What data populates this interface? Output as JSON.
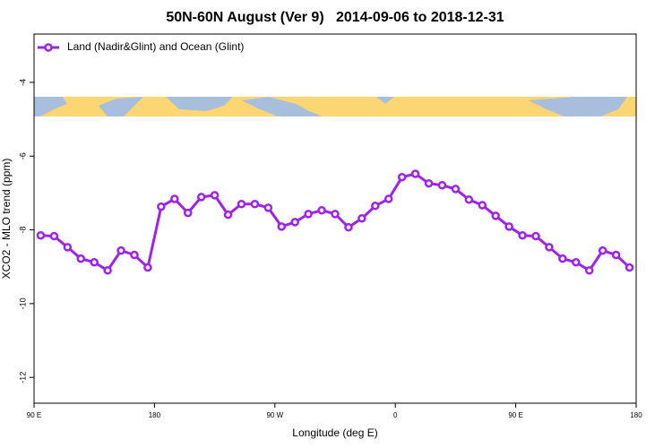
{
  "chart_data": {
    "type": "line",
    "title": "50N-60N August (Ver 9)   2014-09-06 to 2018-12-31",
    "xlabel": "Longitude (deg E)",
    "ylabel": "XCO2 - MLO trend (ppm)",
    "x": [
      95,
      105,
      115,
      125,
      135,
      145,
      155,
      165,
      175,
      185,
      195,
      205,
      215,
      225,
      235,
      245,
      255,
      265,
      275,
      285,
      295,
      305,
      315,
      325,
      335,
      345,
      355,
      365,
      375,
      385,
      395,
      405,
      415,
      425,
      435,
      445,
      455,
      465,
      475,
      485,
      495,
      505,
      515,
      525,
      535
    ],
    "series": [
      {
        "name": "Land (Nadir&Glint) and Ocean (Glint)",
        "color": "#a020f0",
        "values": [
          -8.15,
          -8.17,
          -8.47,
          -8.78,
          -8.88,
          -9.1,
          -8.56,
          -8.68,
          -9.02,
          -7.37,
          -7.16,
          -7.54,
          -7.11,
          -7.06,
          -7.59,
          -7.3,
          -7.3,
          -7.4,
          -7.91,
          -7.79,
          -7.57,
          -7.47,
          -7.57,
          -7.93,
          -7.69,
          -7.35,
          -7.16,
          -6.57,
          -6.48,
          -6.74,
          -6.79,
          -6.89,
          -7.18,
          -7.33,
          -7.62,
          -7.91,
          -8.15,
          -8.17,
          -8.47,
          -8.78,
          -8.88,
          -9.1,
          -8.56,
          -8.68,
          -9.02
        ]
      }
    ],
    "xlim": [
      90,
      540
    ],
    "xticks": [
      {
        "value": 90,
        "label": "90 E"
      },
      {
        "value": 180,
        "label": "180"
      },
      {
        "value": 270,
        "label": "90 W"
      },
      {
        "value": 360,
        "label": "0"
      },
      {
        "value": 450,
        "label": "90 E"
      },
      {
        "value": 540,
        "label": "180"
      }
    ],
    "ylim": [
      -12.7,
      -2.69
    ],
    "yticks": [
      -4,
      -6,
      -8,
      -10,
      -12
    ],
    "legend": "top-left"
  }
}
